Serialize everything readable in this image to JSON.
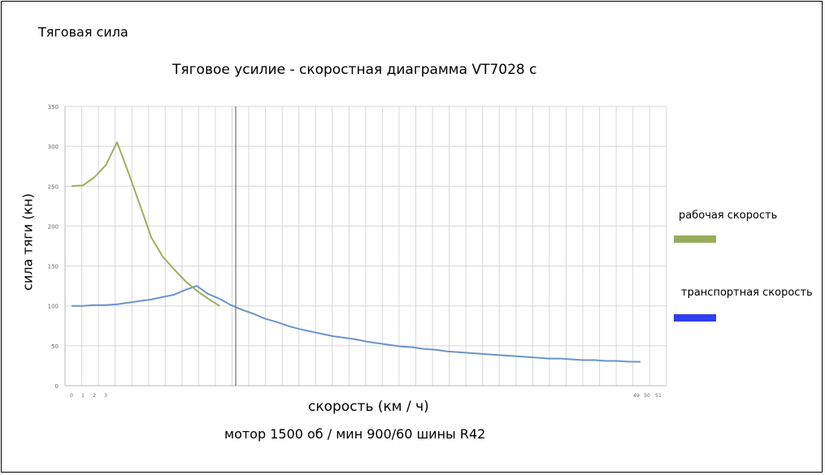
{
  "heading": "Тяговая сила",
  "chart_data": {
    "type": "line",
    "title": "Тяговое усилие - скоростная диаграмма VT7028 c",
    "xlabel": "скорость (км / ч)",
    "ylabel": "сила тяги (кн)",
    "caption": "мотор 1500 об / мин 900/60 шины R42",
    "ylim": [
      0,
      350
    ],
    "yticks": [
      "0",
      "50",
      "100",
      "150",
      "200",
      "250",
      "300",
      "350"
    ],
    "xticks": [
      "0",
      "1",
      "2",
      "3",
      "49",
      "50",
      "51"
    ],
    "grid": true,
    "legend_position": "right",
    "series": [
      {
        "name": "рабочая скорость",
        "color": "#9bb15a",
        "points": [
          [
            0,
            250
          ],
          [
            1,
            251
          ],
          [
            2,
            261
          ],
          [
            3,
            276
          ],
          [
            4,
            305
          ],
          [
            5,
            267
          ],
          [
            6,
            227
          ],
          [
            7,
            186
          ],
          [
            8,
            162
          ],
          [
            9,
            146
          ],
          [
            10,
            131
          ],
          [
            11,
            119
          ],
          [
            12,
            109
          ],
          [
            13,
            100
          ]
        ]
      },
      {
        "name": "транспортная скорость",
        "color": "#6a95c8",
        "points": [
          [
            0,
            100
          ],
          [
            1,
            100
          ],
          [
            2,
            101
          ],
          [
            3,
            101
          ],
          [
            4,
            102
          ],
          [
            5,
            104
          ],
          [
            6,
            106
          ],
          [
            7,
            108
          ],
          [
            8,
            111
          ],
          [
            9,
            114
          ],
          [
            10,
            120
          ],
          [
            11,
            125
          ],
          [
            12,
            115
          ],
          [
            13,
            109
          ],
          [
            14,
            101
          ],
          [
            15,
            95
          ],
          [
            16,
            90
          ],
          [
            17,
            84
          ],
          [
            18,
            80
          ],
          [
            19,
            75
          ],
          [
            20,
            71
          ],
          [
            21,
            68
          ],
          [
            22,
            65
          ],
          [
            23,
            62
          ],
          [
            24,
            60
          ],
          [
            25,
            58
          ],
          [
            26,
            55
          ],
          [
            27,
            53
          ],
          [
            28,
            51
          ],
          [
            29,
            49
          ],
          [
            30,
            48
          ],
          [
            31,
            46
          ],
          [
            32,
            45
          ],
          [
            33,
            43
          ],
          [
            34,
            42
          ],
          [
            35,
            41
          ],
          [
            36,
            40
          ],
          [
            37,
            39
          ],
          [
            38,
            38
          ],
          [
            39,
            37
          ],
          [
            40,
            36
          ],
          [
            41,
            35
          ],
          [
            42,
            34
          ],
          [
            43,
            34
          ],
          [
            44,
            33
          ],
          [
            45,
            32
          ],
          [
            46,
            32
          ],
          [
            47,
            31
          ],
          [
            48,
            31
          ],
          [
            49,
            30
          ],
          [
            50,
            30
          ]
        ]
      }
    ],
    "legend_colors": [
      "#98ad5c",
      "#2e3ff0"
    ]
  }
}
